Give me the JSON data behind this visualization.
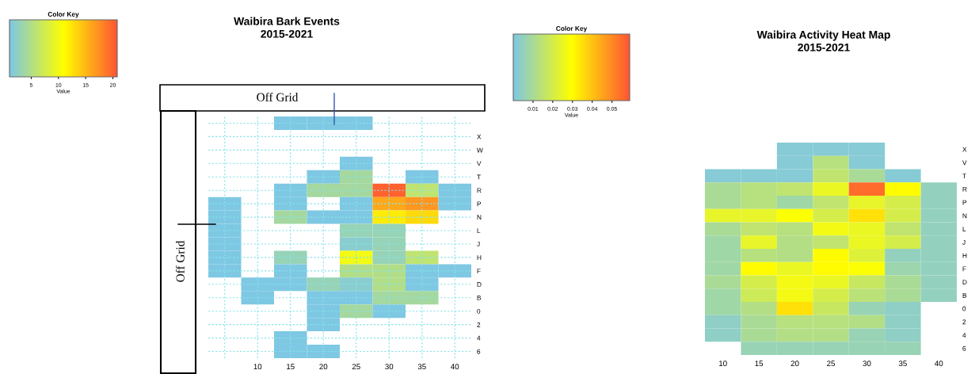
{
  "chart_data": [
    {
      "type": "heatmap",
      "title": "Waibira Bark Events",
      "subtitle": "2015-2021",
      "grid": true,
      "colors": [
        "#7ec8e3",
        "#ffff00",
        "#ff5533"
      ],
      "categories": [
        null,
        "10",
        "15",
        "20",
        "25",
        "30",
        "35",
        "40"
      ],
      "y_categories": [
        null,
        "X",
        "W",
        "V",
        "T",
        "R",
        "P",
        "N",
        "L",
        "J",
        "H",
        "F",
        "D",
        "B",
        "0",
        "2",
        "4",
        "6"
      ],
      "cells": [
        [
          null,
          null,
          1,
          1,
          1,
          null,
          null,
          null
        ],
        [
          null,
          null,
          null,
          null,
          null,
          null,
          null,
          null
        ],
        [
          null,
          null,
          null,
          null,
          null,
          null,
          null,
          null
        ],
        [
          null,
          null,
          null,
          null,
          1,
          null,
          null,
          null
        ],
        [
          null,
          null,
          null,
          1,
          4,
          null,
          1,
          null
        ],
        [
          null,
          null,
          1,
          4,
          4,
          20,
          6,
          1
        ],
        [
          1,
          null,
          1,
          null,
          1,
          16,
          17,
          1
        ],
        [
          1,
          null,
          4,
          1,
          1,
          12,
          13,
          null
        ],
        [
          1,
          null,
          null,
          null,
          3,
          3,
          null,
          null
        ],
        [
          1,
          null,
          null,
          null,
          2,
          3,
          null,
          null
        ],
        [
          1,
          null,
          3,
          null,
          10,
          3,
          6,
          null
        ],
        [
          1,
          null,
          1,
          null,
          5,
          5,
          1,
          1
        ],
        [
          null,
          1,
          1,
          3,
          2,
          5,
          1,
          null
        ],
        [
          null,
          1,
          null,
          1,
          1,
          4,
          4,
          null
        ],
        [
          null,
          null,
          null,
          1,
          4,
          1,
          null,
          null
        ],
        [
          null,
          null,
          null,
          1,
          null,
          null,
          null,
          null
        ],
        [
          null,
          null,
          1,
          null,
          null,
          null,
          null,
          null
        ],
        [
          null,
          null,
          1,
          1,
          null,
          null,
          null,
          null
        ]
      ],
      "clim": [
        1,
        20.8
      ],
      "cticks": [
        5,
        10,
        15,
        20
      ],
      "clabel": "Value",
      "annotations": [
        "Color Key",
        "Off Grid",
        "Off Grid"
      ]
    },
    {
      "type": "heatmap",
      "title": "Waibira Activity Heat Map",
      "subtitle": "2015-2021",
      "grid": false,
      "colors": [
        "#7ec8e3",
        "#ffff00",
        "#ff5533"
      ],
      "categories": [
        "10",
        "15",
        "20",
        "25",
        "30",
        "35",
        "40"
      ],
      "y_categories": [
        "X",
        "V",
        "T",
        "R",
        "P",
        "N",
        "L",
        "J",
        "H",
        "F",
        "D",
        "B",
        "0",
        "2",
        "4",
        "6"
      ],
      "cells": [
        [
          null,
          null,
          0.002,
          0.002,
          0.002,
          null,
          null
        ],
        [
          null,
          null,
          0.002,
          0.013,
          0.002,
          null,
          null
        ],
        [
          0.002,
          0.002,
          0.002,
          0.015,
          0.01,
          0.002,
          null
        ],
        [
          0.01,
          0.013,
          0.015,
          0.025,
          0.055,
          0.03,
          0.005
        ],
        [
          0.01,
          0.013,
          0.008,
          0.015,
          0.024,
          0.02,
          0.005
        ],
        [
          0.024,
          0.024,
          0.029,
          0.02,
          0.035,
          0.02,
          0.005
        ],
        [
          0.01,
          0.015,
          0.013,
          0.027,
          0.025,
          0.015,
          0.005
        ],
        [
          0.008,
          0.024,
          0.012,
          0.015,
          0.025,
          0.02,
          0.005
        ],
        [
          0.008,
          0.013,
          0.012,
          0.03,
          0.022,
          0.005,
          0.005
        ],
        [
          0.008,
          0.03,
          0.025,
          0.03,
          0.029,
          0.007,
          0.005
        ],
        [
          0.01,
          0.02,
          0.027,
          0.025,
          0.017,
          0.01,
          0.005
        ],
        [
          0.008,
          0.018,
          0.027,
          0.02,
          0.014,
          0.01,
          0.005
        ],
        [
          0.008,
          0.012,
          0.035,
          0.017,
          0.006,
          0.004,
          null
        ],
        [
          0.004,
          0.01,
          0.013,
          0.013,
          0.012,
          0.004,
          null
        ],
        [
          0.004,
          0.01,
          0.012,
          0.012,
          0.006,
          0.004,
          null
        ],
        [
          null,
          0.006,
          0.006,
          0.006,
          0.006,
          0.006,
          null
        ]
      ],
      "clim": [
        0,
        0.059
      ],
      "cticks": [
        0.01,
        0.02,
        0.03,
        0.04,
        0.05
      ],
      "clabel": "Value",
      "annotations": [
        "Color Key"
      ]
    }
  ]
}
